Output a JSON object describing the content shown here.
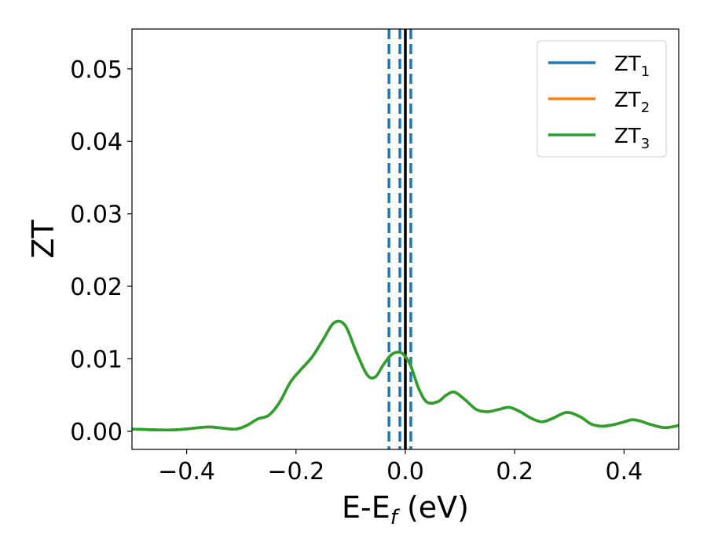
{
  "chart_data": {
    "type": "line",
    "xlabel": {
      "main": "E-E",
      "sub": "f",
      "tail": " (eV)"
    },
    "ylabel": "ZT",
    "xlim": [
      -0.5,
      0.5
    ],
    "ylim": [
      -0.0025,
      0.0555
    ],
    "xticks": [
      -0.4,
      -0.2,
      0.0,
      0.2,
      0.4
    ],
    "xtick_labels": [
      "−0.4",
      "−0.2",
      "0.0",
      "0.2",
      "0.4"
    ],
    "yticks": [
      0.0,
      0.01,
      0.02,
      0.03,
      0.04,
      0.05
    ],
    "ytick_labels": [
      "0.00",
      "0.01",
      "0.02",
      "0.03",
      "0.04",
      "0.05"
    ],
    "grid": false,
    "legend_position": "top-right",
    "vertical_lines": [
      {
        "x": -0.03,
        "style": "dashed",
        "color": "#1f77b4"
      },
      {
        "x": -0.01,
        "style": "dashed",
        "color": "#1f77b4"
      },
      {
        "x": 0.01,
        "style": "dashed",
        "color": "#1f77b4"
      },
      {
        "x": 0.0,
        "style": "solid",
        "color": "#000000"
      }
    ],
    "x": [
      -0.5,
      -0.46,
      -0.42,
      -0.39,
      -0.36,
      -0.33,
      -0.31,
      -0.29,
      -0.27,
      -0.25,
      -0.23,
      -0.21,
      -0.19,
      -0.17,
      -0.15,
      -0.13,
      -0.11,
      -0.09,
      -0.07,
      -0.055,
      -0.04,
      -0.025,
      -0.01,
      0.0,
      0.01,
      0.025,
      0.04,
      0.06,
      0.075,
      0.09,
      0.11,
      0.13,
      0.15,
      0.17,
      0.19,
      0.21,
      0.23,
      0.25,
      0.27,
      0.295,
      0.32,
      0.34,
      0.36,
      0.38,
      0.4,
      0.415,
      0.43,
      0.45,
      0.475,
      0.5
    ],
    "series": [
      {
        "name": "ZT",
        "sub": "1",
        "color": "#1f77b4",
        "values": [
          0.0003,
          0.0002,
          0.0002,
          0.0004,
          0.0006,
          0.0004,
          0.0003,
          0.0008,
          0.0017,
          0.0022,
          0.004,
          0.0068,
          0.0086,
          0.0103,
          0.0127,
          0.015,
          0.0146,
          0.011,
          0.0078,
          0.0075,
          0.0092,
          0.0106,
          0.0109,
          0.0103,
          0.009,
          0.0058,
          0.004,
          0.0041,
          0.005,
          0.0054,
          0.0043,
          0.003,
          0.0027,
          0.003,
          0.0033,
          0.0027,
          0.0018,
          0.0013,
          0.0018,
          0.0026,
          0.002,
          0.001,
          0.0007,
          0.0009,
          0.0013,
          0.0016,
          0.0014,
          0.0009,
          0.0005,
          0.0008
        ]
      },
      {
        "name": "ZT",
        "sub": "2",
        "color": "#ff7f0e",
        "values": [
          0.0003,
          0.0002,
          0.0002,
          0.0004,
          0.0006,
          0.0004,
          0.0003,
          0.0008,
          0.0017,
          0.0022,
          0.004,
          0.0068,
          0.0086,
          0.0103,
          0.0127,
          0.015,
          0.0146,
          0.011,
          0.0078,
          0.0075,
          0.0092,
          0.0106,
          0.0109,
          0.0103,
          0.009,
          0.0058,
          0.004,
          0.0041,
          0.005,
          0.0054,
          0.0043,
          0.003,
          0.0027,
          0.003,
          0.0033,
          0.0027,
          0.0018,
          0.0013,
          0.0018,
          0.0026,
          0.002,
          0.001,
          0.0007,
          0.0009,
          0.0013,
          0.0016,
          0.0014,
          0.0009,
          0.0005,
          0.0008
        ]
      },
      {
        "name": "ZT",
        "sub": "3",
        "color": "#2ca02c",
        "values": [
          0.0003,
          0.0002,
          0.0002,
          0.0004,
          0.0006,
          0.0004,
          0.0003,
          0.0008,
          0.0017,
          0.0022,
          0.004,
          0.0068,
          0.0086,
          0.0103,
          0.0127,
          0.015,
          0.0146,
          0.011,
          0.0078,
          0.0075,
          0.0092,
          0.0106,
          0.0109,
          0.0103,
          0.009,
          0.0058,
          0.004,
          0.0041,
          0.005,
          0.0054,
          0.0043,
          0.003,
          0.0027,
          0.003,
          0.0033,
          0.0027,
          0.0018,
          0.0013,
          0.0018,
          0.0026,
          0.002,
          0.001,
          0.0007,
          0.0009,
          0.0013,
          0.0016,
          0.0014,
          0.0009,
          0.0005,
          0.0008
        ]
      }
    ]
  }
}
